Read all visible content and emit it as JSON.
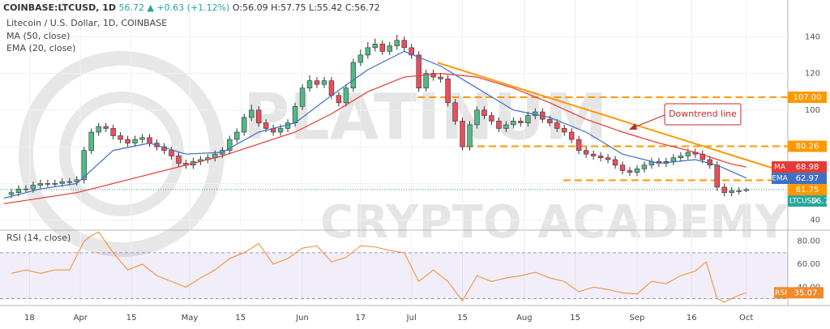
{
  "header": {
    "symbol": "COINBASE:LTCUSD, 1D",
    "last": "56.72",
    "change": "+0.63 (+1.12%)",
    "ohlc": [
      "O:56.09",
      "H:57.75",
      "L:55.42",
      "C:56.72"
    ]
  },
  "watermark": [
    "PLATINUM",
    "CRYPTO ACADEMY"
  ],
  "chart_data": [
    {
      "type": "candlestick",
      "title": "Litecoin / U.S. Dollar, 1D, COINBASE",
      "symbol_label": "LTCUSD",
      "x": [
        72,
        74,
        76,
        78,
        80,
        82,
        84,
        86,
        88,
        90,
        92,
        94,
        96,
        98,
        100,
        102,
        104,
        106,
        108,
        110,
        112,
        114,
        116,
        118,
        120,
        122,
        124,
        126,
        128,
        130,
        132,
        134,
        136,
        138,
        140,
        142,
        144,
        146,
        148,
        150,
        152,
        154,
        156,
        158,
        160,
        162,
        164,
        166,
        168,
        170,
        172,
        174,
        176,
        178,
        180,
        182,
        184,
        186,
        188,
        190,
        192,
        194,
        196,
        198,
        200,
        202,
        204,
        206,
        208,
        210,
        212,
        214,
        216,
        218,
        220,
        222,
        224,
        226,
        228,
        230,
        232,
        234,
        236,
        238,
        240,
        242,
        244,
        246,
        248,
        250,
        252,
        254,
        256,
        258,
        260,
        262,
        264,
        266,
        268,
        270,
        272,
        274
      ],
      "open": [
        54,
        55,
        57,
        57,
        59,
        60,
        60,
        60,
        61,
        61,
        62,
        78,
        88,
        91,
        90,
        86,
        84,
        82,
        84,
        85,
        82,
        80,
        78,
        75,
        71,
        70,
        72,
        73,
        74,
        76,
        78,
        84,
        88,
        96,
        100,
        93,
        90,
        88,
        90,
        93,
        102,
        112,
        116,
        114,
        116,
        108,
        104,
        112,
        126,
        130,
        134,
        136,
        132,
        135,
        138,
        134,
        130,
        112,
        120,
        118,
        117,
        104,
        94,
        80,
        92,
        100,
        97,
        94,
        90,
        92,
        94,
        93,
        97,
        99,
        95,
        93,
        90,
        88,
        84,
        78,
        76,
        75,
        74,
        73,
        70,
        67,
        66,
        68,
        70,
        72,
        71,
        72,
        74,
        75,
        77,
        76,
        73,
        70,
        58,
        55,
        56,
        56.09
      ],
      "high": [
        57,
        59,
        59,
        61,
        62,
        62,
        62,
        63,
        63,
        64,
        80,
        90,
        93,
        93,
        92,
        88,
        86,
        86,
        87,
        87,
        84,
        82,
        80,
        77,
        73,
        74,
        75,
        76,
        78,
        80,
        86,
        90,
        98,
        103,
        102,
        95,
        92,
        92,
        95,
        104,
        114,
        119,
        118,
        118,
        118,
        110,
        114,
        128,
        133,
        137,
        139,
        138,
        137,
        141,
        140,
        136,
        132,
        122,
        122,
        120,
        119,
        106,
        96,
        94,
        102,
        102,
        99,
        96,
        94,
        96,
        96,
        99,
        101,
        101,
        97,
        95,
        92,
        90,
        86,
        80,
        78,
        77,
        76,
        75,
        72,
        69,
        70,
        72,
        74,
        74,
        74,
        76,
        77,
        79,
        79,
        78,
        75,
        72,
        60,
        58,
        58,
        57.75
      ],
      "low": [
        52,
        53,
        55,
        55,
        57,
        58,
        58,
        58,
        59,
        59,
        60,
        76,
        86,
        88,
        84,
        82,
        80,
        80,
        82,
        80,
        78,
        76,
        73,
        69,
        68,
        68,
        70,
        71,
        72,
        74,
        76,
        82,
        86,
        94,
        91,
        88,
        86,
        86,
        88,
        91,
        100,
        110,
        112,
        112,
        106,
        102,
        102,
        110,
        124,
        128,
        132,
        130,
        130,
        133,
        132,
        128,
        110,
        110,
        116,
        115,
        102,
        92,
        78,
        78,
        90,
        95,
        92,
        88,
        88,
        90,
        91,
        91,
        95,
        93,
        91,
        88,
        86,
        82,
        76,
        74,
        73,
        72,
        71,
        68,
        65,
        64,
        64,
        66,
        68,
        69,
        69,
        70,
        72,
        73,
        74,
        71,
        68,
        56,
        53,
        53,
        54,
        55.42
      ],
      "close": [
        55,
        57,
        57,
        59,
        60,
        60,
        60,
        61,
        61,
        62,
        78,
        88,
        91,
        90,
        86,
        84,
        82,
        84,
        85,
        82,
        80,
        78,
        75,
        71,
        70,
        72,
        73,
        74,
        76,
        78,
        84,
        88,
        96,
        100,
        93,
        90,
        88,
        90,
        93,
        102,
        112,
        116,
        114,
        116,
        108,
        104,
        112,
        126,
        130,
        134,
        136,
        132,
        135,
        138,
        134,
        130,
        112,
        120,
        118,
        117,
        104,
        94,
        80,
        92,
        100,
        97,
        94,
        90,
        92,
        94,
        93,
        97,
        99,
        95,
        93,
        90,
        88,
        84,
        78,
        76,
        75,
        74,
        73,
        70,
        67,
        66,
        68,
        70,
        72,
        71,
        72,
        74,
        75,
        77,
        76,
        73,
        70,
        58,
        55,
        56,
        56,
        56.72
      ],
      "up_color": "#53b987",
      "down_color": "#eb4d5c",
      "xlim": [
        70,
        285
      ],
      "ylim": [
        35,
        160
      ],
      "yticks": [
        40,
        60,
        80,
        100,
        120,
        140
      ],
      "xticks": [
        {
          "value": 77,
          "label": "18"
        },
        {
          "value": 91,
          "label": "Apr"
        },
        {
          "value": 105,
          "label": "15"
        },
        {
          "value": 121,
          "label": "May"
        },
        {
          "value": 135,
          "label": "15"
        },
        {
          "value": 152,
          "label": "Jun"
        },
        {
          "value": 168,
          "label": "17"
        },
        {
          "value": 182,
          "label": "Jul"
        },
        {
          "value": 196,
          "label": "15"
        },
        {
          "value": 213,
          "label": "Aug"
        },
        {
          "value": 227,
          "label": "15"
        },
        {
          "value": 244,
          "label": "Sep"
        },
        {
          "value": 259,
          "label": "16"
        },
        {
          "value": 274,
          "label": "Oct"
        }
      ],
      "grid": true,
      "series": [
        {
          "name": "MA (50, close)",
          "short_name": "MA",
          "color": "#e53935",
          "x": [
            70,
            90,
            110,
            130,
            150,
            160,
            170,
            180,
            190,
            200,
            210,
            220,
            230,
            240,
            250,
            260,
            270,
            274
          ],
          "values": [
            49,
            55,
            65,
            75,
            88,
            98,
            110,
            118,
            120,
            118,
            112,
            104,
            95,
            88,
            82,
            77,
            70.5,
            68.98
          ]
        },
        {
          "name": "EMA (20, close)",
          "short_name": "EMA",
          "color": "#3f6fc4",
          "x": [
            70,
            80,
            90,
            100,
            110,
            120,
            130,
            140,
            150,
            160,
            170,
            180,
            190,
            200,
            210,
            220,
            230,
            240,
            250,
            260,
            266,
            274
          ],
          "values": [
            52,
            57,
            60,
            78,
            82,
            76,
            77,
            88,
            93,
            108,
            122,
            132,
            124,
            112,
            100,
            96,
            88,
            76,
            71,
            73,
            70,
            62.97
          ]
        }
      ],
      "levels": [
        {
          "value": 107,
          "label": "107.00",
          "x0": 183.7
        },
        {
          "value": 80.26,
          "x0": 197
        },
        {
          "value": 61.75,
          "x0": 223.7
        }
      ],
      "level_color": "#ff9800",
      "trendline": {
        "x": [
          189.2,
          284.8
        ],
        "values": [
          125.8,
          66.2
        ],
        "color": "#ff9800"
      },
      "annotation": "Downtrend line"
    },
    {
      "type": "line",
      "title": "RSI (14, close)",
      "series": [
        {
          "name": "RSI",
          "color": "#f08a2c",
          "x": [
            72,
            76,
            80,
            84,
            88,
            92,
            94,
            96,
            100,
            104,
            108,
            112,
            116,
            120,
            124,
            128,
            132,
            136,
            140,
            144,
            148,
            152,
            156,
            160,
            164,
            168,
            172,
            176,
            180,
            184,
            188,
            192,
            196,
            200,
            204,
            208,
            212,
            216,
            220,
            224,
            228,
            232,
            236,
            240,
            244,
            248,
            252,
            256,
            260,
            263,
            266,
            268,
            270,
            272,
            274
          ],
          "values": [
            52,
            55,
            52,
            55,
            55,
            80,
            85,
            88,
            70,
            55,
            60,
            50,
            45,
            40,
            48,
            55,
            65,
            70,
            78,
            60,
            65,
            74,
            76,
            62,
            66,
            76,
            75,
            72,
            70,
            45,
            55,
            45,
            28,
            50,
            45,
            48,
            50,
            53,
            48,
            45,
            36,
            40,
            38,
            35,
            34,
            45,
            43,
            50,
            54,
            62,
            30,
            27,
            30,
            33,
            35.07
          ]
        }
      ],
      "band": [
        30,
        70
      ],
      "xlim": [
        70,
        285
      ],
      "ylim": [
        24,
        89
      ],
      "yticks": [
        {
          "value": 40,
          "label": "40.00"
        },
        {
          "value": 60,
          "label": "60.00"
        },
        {
          "value": 80,
          "label": "80.00"
        }
      ]
    }
  ]
}
